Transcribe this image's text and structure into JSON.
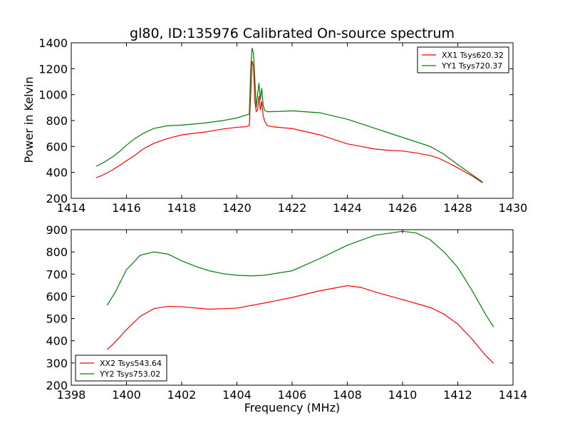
{
  "figure": {
    "title": "gl80, ID:135976 Calibrated On-source spectrum",
    "shared_ylabel": "Power in Kelvin",
    "shared_xlabel": "Frequency (MHz)"
  },
  "colors": {
    "red": "#ff0000",
    "green": "#008000",
    "axes": "#000000",
    "background": "#ffffff"
  },
  "chart_data": [
    {
      "type": "line",
      "title": "gl80, ID:135976 Calibrated On-source spectrum",
      "xlabel": "",
      "ylabel": "Power in Kelvin",
      "xlim": [
        1414,
        1430
      ],
      "ylim": [
        200,
        1400
      ],
      "xticks": [
        "1414",
        "1416",
        "1418",
        "1420",
        "1422",
        "1424",
        "1426",
        "1428",
        "1430"
      ],
      "yticks": [
        "200",
        "400",
        "600",
        "800",
        "1000",
        "1200",
        "1400"
      ],
      "grid": false,
      "legend_position": "top-right",
      "series": [
        {
          "name": "XX1 Tsys620.32",
          "color": "#ff0000",
          "points": [
            [
              1414.9,
              358
            ],
            [
              1415.2,
              385
            ],
            [
              1415.5,
              420
            ],
            [
              1415.8,
              460
            ],
            [
              1416.0,
              490
            ],
            [
              1416.3,
              530
            ],
            [
              1416.6,
              580
            ],
            [
              1417.0,
              625
            ],
            [
              1417.4,
              655
            ],
            [
              1418.0,
              690
            ],
            [
              1418.8,
              710
            ],
            [
              1419.5,
              735
            ],
            [
              1420.0,
              748
            ],
            [
              1420.3,
              752
            ],
            [
              1420.45,
              760
            ],
            [
              1420.5,
              1000
            ],
            [
              1420.55,
              1260
            ],
            [
              1420.6,
              1220
            ],
            [
              1420.65,
              950
            ],
            [
              1420.7,
              870
            ],
            [
              1420.75,
              880
            ],
            [
              1420.8,
              990
            ],
            [
              1420.85,
              880
            ],
            [
              1420.9,
              950
            ],
            [
              1420.95,
              840
            ],
            [
              1421.0,
              800
            ],
            [
              1421.1,
              760
            ],
            [
              1421.3,
              752
            ],
            [
              1422.0,
              738
            ],
            [
              1423.0,
              690
            ],
            [
              1424.0,
              620
            ],
            [
              1424.5,
              600
            ],
            [
              1425.0,
              580
            ],
            [
              1425.5,
              570
            ],
            [
              1426.0,
              565
            ],
            [
              1426.5,
              550
            ],
            [
              1427.0,
              530
            ],
            [
              1427.3,
              510
            ],
            [
              1427.6,
              480
            ],
            [
              1428.0,
              435
            ],
            [
              1428.5,
              375
            ],
            [
              1428.9,
              320
            ]
          ]
        },
        {
          "name": "YY1 Tsys720.37",
          "color": "#008000",
          "points": [
            [
              1414.9,
              447
            ],
            [
              1415.2,
              480
            ],
            [
              1415.5,
              520
            ],
            [
              1415.8,
              570
            ],
            [
              1416.0,
              610
            ],
            [
              1416.3,
              660
            ],
            [
              1416.6,
              700
            ],
            [
              1417.0,
              740
            ],
            [
              1417.5,
              760
            ],
            [
              1418.0,
              765
            ],
            [
              1418.8,
              780
            ],
            [
              1419.5,
              800
            ],
            [
              1420.0,
              820
            ],
            [
              1420.3,
              840
            ],
            [
              1420.45,
              850
            ],
            [
              1420.5,
              1200
            ],
            [
              1420.55,
              1360
            ],
            [
              1420.6,
              1320
            ],
            [
              1420.65,
              1120
            ],
            [
              1420.7,
              900
            ],
            [
              1420.75,
              1000
            ],
            [
              1420.8,
              1090
            ],
            [
              1420.85,
              960
            ],
            [
              1420.9,
              1050
            ],
            [
              1420.95,
              920
            ],
            [
              1421.0,
              880
            ],
            [
              1421.1,
              868
            ],
            [
              1421.5,
              870
            ],
            [
              1422.0,
              875
            ],
            [
              1423.0,
              860
            ],
            [
              1424.0,
              810
            ],
            [
              1425.0,
              740
            ],
            [
              1426.0,
              670
            ],
            [
              1427.0,
              600
            ],
            [
              1427.5,
              540
            ],
            [
              1428.0,
              460
            ],
            [
              1428.5,
              385
            ],
            [
              1428.9,
              325
            ]
          ]
        }
      ]
    },
    {
      "type": "line",
      "title": "",
      "xlabel": "Frequency (MHz)",
      "ylabel": "",
      "xlim": [
        1398,
        1414
      ],
      "ylim": [
        200,
        900
      ],
      "xticks": [
        "1398",
        "1400",
        "1402",
        "1404",
        "1406",
        "1408",
        "1410",
        "1412",
        "1414"
      ],
      "yticks": [
        "200",
        "300",
        "400",
        "500",
        "600",
        "700",
        "800",
        "900"
      ],
      "grid": false,
      "legend_position": "bottom-left",
      "series": [
        {
          "name": "XX2 Tsys543.64",
          "color": "#ff0000",
          "points": [
            [
              1399.3,
              360
            ],
            [
              1399.6,
              395
            ],
            [
              1400.0,
              450
            ],
            [
              1400.5,
              510
            ],
            [
              1401.0,
              545
            ],
            [
              1401.5,
              555
            ],
            [
              1402.0,
              553
            ],
            [
              1403.0,
              542
            ],
            [
              1404.0,
              547
            ],
            [
              1405.0,
              570
            ],
            [
              1406.0,
              595
            ],
            [
              1407.0,
              625
            ],
            [
              1408.0,
              648
            ],
            [
              1408.5,
              640
            ],
            [
              1409.0,
              620
            ],
            [
              1410.0,
              585
            ],
            [
              1411.0,
              550
            ],
            [
              1411.5,
              520
            ],
            [
              1412.0,
              475
            ],
            [
              1412.5,
              410
            ],
            [
              1413.0,
              335
            ],
            [
              1413.3,
              298
            ]
          ]
        },
        {
          "name": "YY2 Tsys753.02",
          "color": "#008000",
          "points": [
            [
              1399.3,
              560
            ],
            [
              1399.6,
              620
            ],
            [
              1400.0,
              720
            ],
            [
              1400.5,
              785
            ],
            [
              1401.0,
              800
            ],
            [
              1401.5,
              790
            ],
            [
              1402.0,
              760
            ],
            [
              1402.5,
              735
            ],
            [
              1403.0,
              715
            ],
            [
              1403.5,
              702
            ],
            [
              1404.0,
              695
            ],
            [
              1404.5,
              692
            ],
            [
              1405.0,
              695
            ],
            [
              1406.0,
              715
            ],
            [
              1407.0,
              770
            ],
            [
              1408.0,
              830
            ],
            [
              1409.0,
              875
            ],
            [
              1410.0,
              893
            ],
            [
              1410.5,
              885
            ],
            [
              1411.0,
              855
            ],
            [
              1411.5,
              800
            ],
            [
              1412.0,
              730
            ],
            [
              1412.5,
              630
            ],
            [
              1413.0,
              520
            ],
            [
              1413.3,
              462
            ]
          ]
        }
      ]
    }
  ]
}
